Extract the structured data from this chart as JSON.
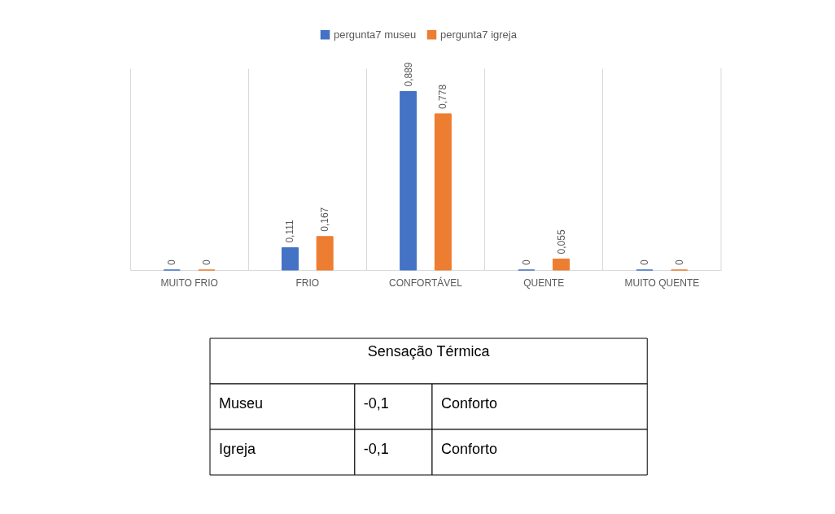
{
  "chart_data": [
    {
      "type": "bar",
      "categories": [
        "MUITO FRIO",
        "FRIO",
        "CONFORTÁVEL",
        "QUENTE",
        "MUITO QUENTE"
      ],
      "series": [
        {
          "name": "pergunta7 museu",
          "color": "#4472c4",
          "values": [
            0,
            0.111,
            0.889,
            0,
            0
          ],
          "value_labels": [
            "0",
            "0,111",
            "0,889",
            "0",
            "0"
          ]
        },
        {
          "name": "pergunta7 igreja",
          "color": "#ed7d31",
          "values": [
            0,
            0.167,
            0.778,
            0.055,
            0
          ],
          "value_labels": [
            "0",
            "0,167",
            "0,778",
            "0,055",
            "0"
          ]
        }
      ],
      "legend": "top",
      "grid": "x"
    },
    {
      "type": "other",
      "title": "Sensação Térmica",
      "annotations": [
        "Museu",
        "-0,1",
        "Conforto",
        "Igreja",
        "-0,1",
        "Conforto"
      ]
    }
  ]
}
